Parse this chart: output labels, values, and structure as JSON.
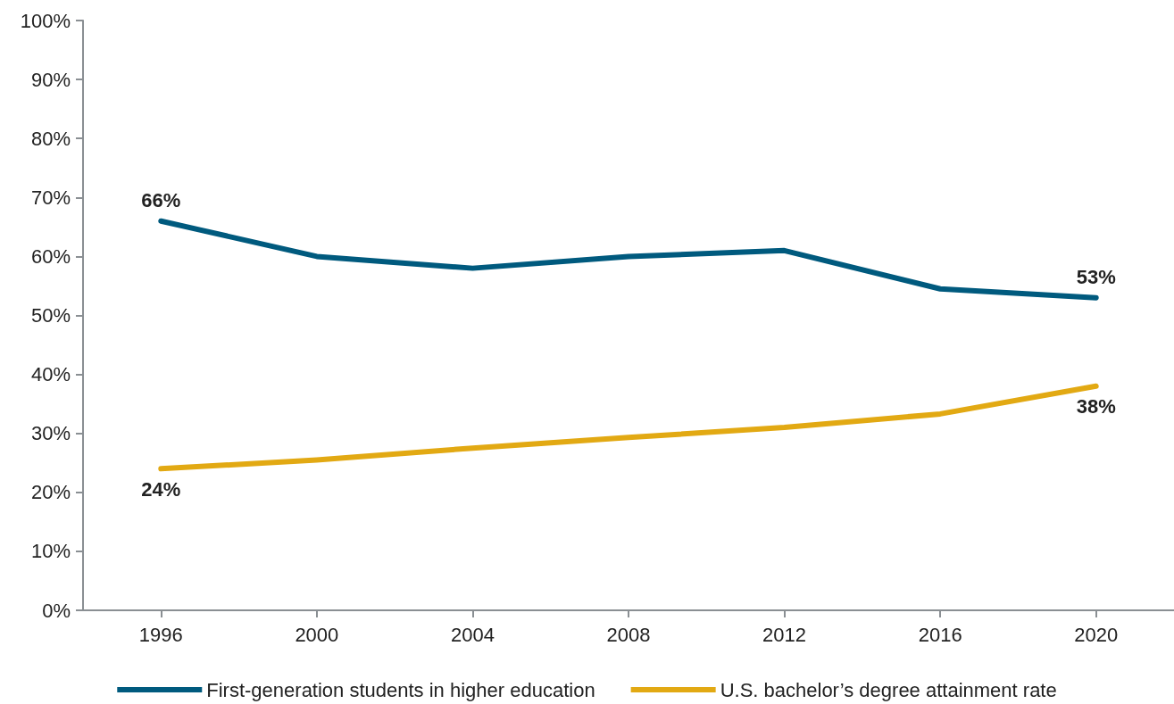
{
  "chart_data": {
    "type": "line",
    "categories": [
      "1996",
      "2000",
      "2004",
      "2008",
      "2012",
      "2016",
      "2020"
    ],
    "series": [
      {
        "name": "First-generation students in higher education",
        "color": "#005a7e",
        "values": [
          66,
          60,
          58,
          60,
          61,
          54.5,
          53
        ],
        "value_labels": [
          "66%",
          null,
          null,
          null,
          null,
          null,
          "53%"
        ]
      },
      {
        "name": "U.S. bachelor’s degree attainment rate",
        "color": "#e2a913",
        "values": [
          24,
          25.5,
          27.5,
          29.3,
          31,
          33.3,
          38
        ],
        "value_labels": [
          "24%",
          null,
          null,
          null,
          null,
          null,
          "38%"
        ]
      }
    ],
    "ylim": [
      0,
      100
    ],
    "yticks": [
      {
        "value": 0,
        "label": "0%"
      },
      {
        "value": 10,
        "label": "10%"
      },
      {
        "value": 20,
        "label": "20%"
      },
      {
        "value": 30,
        "label": "30%"
      },
      {
        "value": 40,
        "label": "40%"
      },
      {
        "value": 50,
        "label": "50%"
      },
      {
        "value": 60,
        "label": "60%"
      },
      {
        "value": 70,
        "label": "70%"
      },
      {
        "value": 80,
        "label": "80%"
      },
      {
        "value": 90,
        "label": "90%"
      },
      {
        "value": 100,
        "label": "100%"
      }
    ],
    "grid": false,
    "legend": "bottom",
    "marker": "none",
    "line_style": "solid"
  }
}
